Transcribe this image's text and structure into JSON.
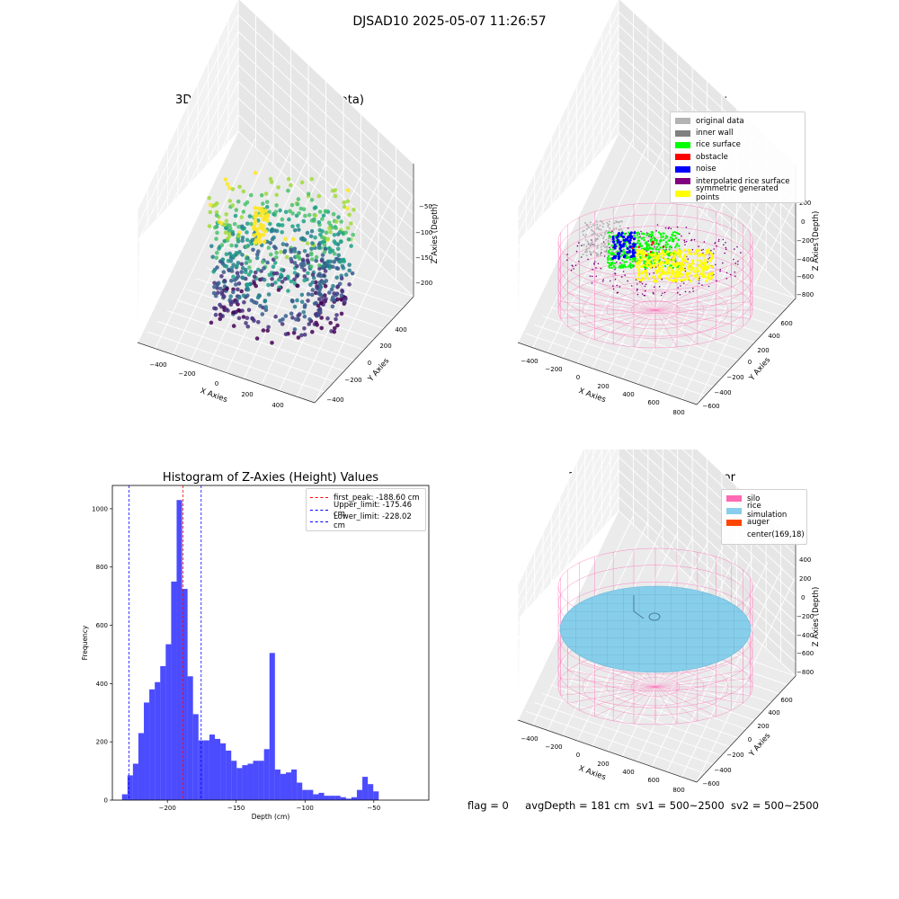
{
  "suptitle": "DJSAD10 2025-05-07 11:26:57",
  "footer": {
    "flag": "flag = 0",
    "avg": "avgDepth = 181 cm",
    "sv1": "sv1 = 500~2500",
    "sv2": "sv2 = 500~2500"
  },
  "colors": {
    "silo": "#ff69b4",
    "rice_sim": "#87ceeb",
    "auger": "#ff4500",
    "hist_bar": "#0000ff",
    "peak_line": "#ff0000",
    "limit_line": "#0000ff"
  },
  "chart_data": [
    {
      "type": "scatter",
      "title": "3D Plot of Silo Interior(row data)",
      "xlabel": "X Axies",
      "ylabel": "Y Axies",
      "zlabel": "Z Axies (Depth)",
      "xticks": [
        "−400",
        "−200",
        "0",
        "200",
        "400"
      ],
      "yticks": [
        "−400",
        "−200",
        "0",
        "200",
        "400"
      ],
      "zticks": [
        "−50",
        "−100",
        "−150",
        "−200"
      ],
      "colormap": "viridis",
      "xlim": [
        -500,
        500
      ],
      "ylim": [
        -500,
        500
      ],
      "zlim": [
        -250,
        0
      ]
    },
    {
      "type": "scatter",
      "title": "3D classify of Silo Interior",
      "xlabel": "X Axies",
      "ylabel": "Y Axies",
      "zlabel": "Z Axies (Depth)",
      "xticks": [
        "−400",
        "−200",
        "0",
        "200",
        "400",
        "600",
        "800"
      ],
      "yticks": [
        "−600",
        "−400",
        "−200",
        "0",
        "200",
        "400",
        "600"
      ],
      "zticks": [
        "200",
        "0",
        "−200",
        "−400",
        "−600",
        "−800"
      ],
      "legend_position": "upper-right",
      "legend": [
        {
          "label": "original data",
          "color": "#b3b3b3"
        },
        {
          "label": "inner wall",
          "color": "#808080"
        },
        {
          "label": "rice surface",
          "color": "#00ff00"
        },
        {
          "label": "obstacle",
          "color": "#ff0000"
        },
        {
          "label": "noise",
          "color": "#0000ff"
        },
        {
          "label": "interpolated rice surface",
          "color": "#800080"
        },
        {
          "label": "symmetric generated points",
          "color": "#ffff00"
        }
      ]
    },
    {
      "type": "bar",
      "title": "Histogram of Z-Axies (Height) Values",
      "xlabel": "Depth (cm)",
      "ylabel": "Frequency",
      "xlim": [
        -240,
        -10
      ],
      "ylim": [
        0,
        1080
      ],
      "xticks": [
        -200,
        -150,
        -100,
        -50
      ],
      "yticks": [
        0,
        200,
        400,
        600,
        800,
        1000
      ],
      "bins": {
        "start": -233,
        "width": 3.97,
        "counts": [
          20,
          85,
          125,
          230,
          335,
          380,
          405,
          460,
          535,
          750,
          1030,
          725,
          425,
          295,
          205,
          205,
          225,
          210,
          195,
          170,
          135,
          110,
          120,
          125,
          135,
          135,
          175,
          505,
          105,
          90,
          95,
          105,
          60,
          35,
          35,
          20,
          25,
          15,
          15,
          15,
          10,
          5,
          10,
          35,
          80,
          55,
          30
        ]
      },
      "vlines": [
        {
          "label": "first_peak: -188.60 cm",
          "x": -188.6,
          "color": "#ff0000"
        },
        {
          "label": "Upper_limit: -175.46 cm",
          "x": -175.46,
          "color": "#0000ff"
        },
        {
          "label": "Lower_limit: -228.02 cm",
          "x": -228.02,
          "color": "#0000ff"
        }
      ]
    },
    {
      "type": "scatter",
      "title": "3D simulation of Silo Interior",
      "xlabel": "X Axies",
      "ylabel": "Y Axies",
      "zlabel": "Z Axies (Depth)",
      "xticks": [
        "−400",
        "−200",
        "0",
        "200",
        "400",
        "600",
        "800"
      ],
      "yticks": [
        "−600",
        "−400",
        "−200",
        "0",
        "200",
        "400",
        "600"
      ],
      "zticks": [
        "400",
        "200",
        "0",
        "−200",
        "−400",
        "−600",
        "−800"
      ],
      "legend_position": "upper-right",
      "legend": [
        {
          "label": "silo",
          "color": "#ff69b4"
        },
        {
          "label": "rice simulation",
          "color": "#87ceeb"
        },
        {
          "label": "auger",
          "color": "#ff4500"
        },
        {
          "label": "center(169,18)",
          "color": ""
        }
      ]
    }
  ]
}
